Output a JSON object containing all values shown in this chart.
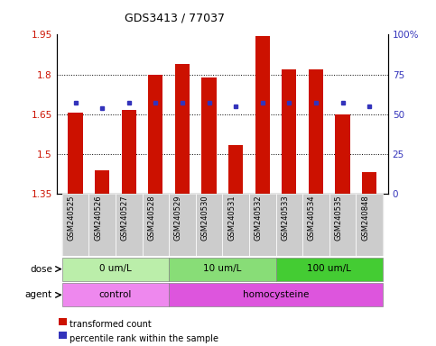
{
  "title": "GDS3413 / 77037",
  "samples": [
    "GSM240525",
    "GSM240526",
    "GSM240527",
    "GSM240528",
    "GSM240529",
    "GSM240530",
    "GSM240531",
    "GSM240532",
    "GSM240533",
    "GSM240534",
    "GSM240535",
    "GSM240848"
  ],
  "transformed_count": [
    1.655,
    1.44,
    1.665,
    1.8,
    1.84,
    1.79,
    1.535,
    1.945,
    1.82,
    1.82,
    1.65,
    1.43
  ],
  "percentile_rank_pct": [
    57,
    54,
    57,
    57,
    57,
    57,
    55,
    57,
    57,
    57,
    57,
    55
  ],
  "bar_color": "#cc1100",
  "dot_color": "#3333bb",
  "ylim_left": [
    1.35,
    1.95
  ],
  "ylim_right": [
    0,
    100
  ],
  "yticks_left": [
    1.35,
    1.5,
    1.65,
    1.8,
    1.95
  ],
  "yticks_right": [
    0,
    25,
    50,
    75,
    100
  ],
  "ytick_labels_right": [
    "0",
    "25",
    "50",
    "75",
    "100%"
  ],
  "dose_groups": [
    {
      "label": "0 um/L",
      "start": 0,
      "end": 3,
      "color": "#bbeeaa"
    },
    {
      "label": "10 um/L",
      "start": 4,
      "end": 7,
      "color": "#88dd77"
    },
    {
      "label": "100 um/L",
      "start": 8,
      "end": 11,
      "color": "#44cc33"
    }
  ],
  "agent_groups": [
    {
      "label": "control",
      "start": 0,
      "end": 3,
      "color": "#ee88ee"
    },
    {
      "label": "homocysteine",
      "start": 4,
      "end": 11,
      "color": "#dd55dd"
    }
  ],
  "dose_label": "dose",
  "agent_label": "agent",
  "legend_red_label": "transformed count",
  "legend_blue_label": "percentile rank within the sample",
  "bar_width": 0.55,
  "background_color": "#ffffff",
  "cell_bg_color": "#cccccc",
  "dotted_grid_lines": [
    1.5,
    1.65,
    1.8
  ],
  "base_value": 1.35
}
